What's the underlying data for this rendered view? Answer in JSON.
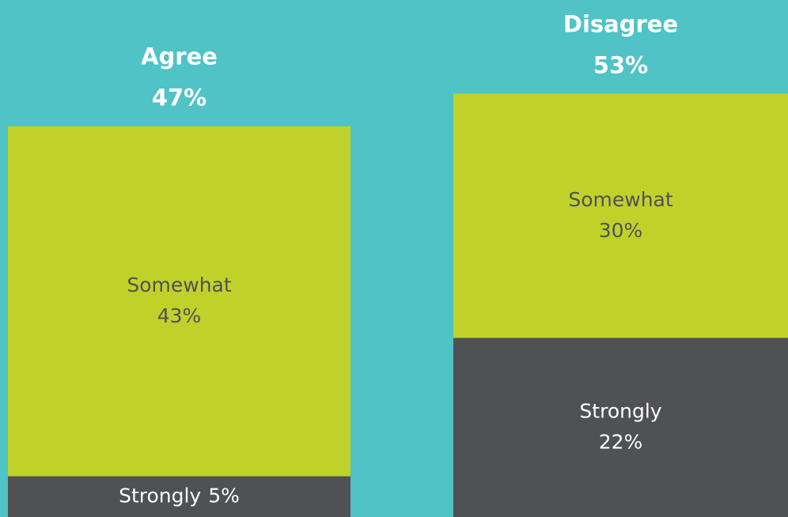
{
  "chart_data": {
    "type": "stacked_bar",
    "categories": [
      "Agree",
      "Disagree"
    ],
    "series": [
      {
        "name": "Strongly",
        "color": "#505154",
        "values": [
          5,
          22
        ],
        "value_labels": [
          "5%",
          "22%"
        ]
      },
      {
        "name": "Somewhat",
        "color": "#c0d22a",
        "values": [
          43,
          30
        ],
        "value_labels": [
          "43%",
          "30%"
        ]
      }
    ],
    "totals": [
      47,
      53
    ],
    "total_labels": [
      "47%",
      "53%"
    ]
  }
}
